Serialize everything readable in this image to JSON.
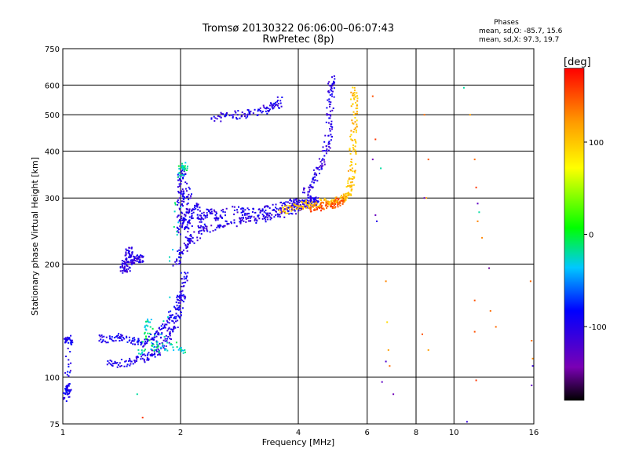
{
  "chart_data": {
    "type": "scatter",
    "title": "Tromsø 20130322 06:06:00–06:07:43",
    "subtitle": "RwPretec (8p)",
    "xlabel": "Frequency [MHz]",
    "ylabel": "Stationary phase Virtual Height [km]",
    "x_scale": "log",
    "y_scale": "log",
    "xlim": [
      1,
      16
    ],
    "ylim": [
      75,
      750
    ],
    "x_ticks": [
      1,
      2,
      4,
      6,
      8,
      10,
      16
    ],
    "y_ticks": [
      75,
      100,
      200,
      300,
      400,
      500,
      600,
      750
    ],
    "grid": true,
    "stats": {
      "title": "Phases",
      "o_line": "mean, sd,O: -85.7, 15.6",
      "x_line": "mean, sd,X:  97.3, 19.7"
    },
    "colorbar": {
      "label": "[deg]",
      "min": -180,
      "max": 180,
      "ticks": [
        100,
        0,
        -100
      ]
    },
    "series": [
      {
        "traces": [
          {
            "points": [
              [
                1.02,
                124
              ],
              [
                1.03,
                126
              ],
              [
                1.05,
                125
              ],
              [
                1.02,
                93
              ],
              [
                1.04,
                92
              ],
              [
                1.01,
                88
              ],
              [
                1.03,
                95
              ]
            ],
            "phase": -95
          },
          {
            "points": [
              [
                1.25,
                126
              ],
              [
                1.32,
                127
              ],
              [
                1.4,
                128
              ],
              [
                1.48,
                125
              ],
              [
                1.56,
                124
              ],
              [
                1.62,
                123
              ],
              [
                1.7,
                126
              ],
              [
                1.75,
                130
              ],
              [
                1.82,
                137
              ],
              [
                1.9,
                146
              ],
              [
                1.96,
                155
              ],
              [
                2.0,
                165
              ]
            ],
            "phase": -95
          },
          {
            "points": [
              [
                1.3,
                108
              ],
              [
                1.4,
                109
              ],
              [
                1.5,
                110
              ],
              [
                1.6,
                112
              ],
              [
                1.68,
                114
              ],
              [
                1.74,
                117
              ],
              [
                1.8,
                121
              ],
              [
                1.86,
                128
              ],
              [
                1.92,
                135
              ],
              [
                1.98,
                145
              ],
              [
                2.02,
                160
              ],
              [
                2.04,
                175
              ],
              [
                2.05,
                190
              ]
            ],
            "phase": -100
          },
          {
            "points": [
              [
                1.42,
                198
              ],
              [
                1.46,
                202
              ],
              [
                1.5,
                205
              ],
              [
                1.55,
                207
              ],
              [
                1.6,
                204
              ],
              [
                1.45,
                215
              ],
              [
                1.5,
                220
              ],
              [
                1.42,
                192
              ],
              [
                1.48,
                196
              ]
            ],
            "phase": -105
          },
          {
            "points": [
              [
                1.95,
                200
              ],
              [
                2.0,
                214
              ],
              [
                2.06,
                225
              ],
              [
                2.15,
                235
              ],
              [
                2.3,
                245
              ],
              [
                2.5,
                252
              ],
              [
                2.7,
                257
              ],
              [
                2.9,
                260
              ],
              [
                3.1,
                263
              ],
              [
                3.3,
                266
              ],
              [
                3.5,
                270
              ],
              [
                3.7,
                274
              ],
              [
                3.9,
                279
              ],
              [
                4.05,
                284
              ],
              [
                4.2,
                288
              ],
              [
                4.35,
                292
              ],
              [
                4.45,
                295
              ]
            ],
            "phase": -105
          },
          {
            "points": [
              [
                2.0,
                240
              ],
              [
                2.0,
                262
              ],
              [
                2.0,
                285
              ],
              [
                2.0,
                310
              ],
              [
                2.0,
                335
              ],
              [
                2.02,
                355
              ],
              [
                2.05,
                300
              ],
              [
                2.05,
                250
              ],
              [
                2.08,
                275
              ],
              [
                2.1,
                230
              ],
              [
                2.1,
                320
              ],
              [
                2.15,
                265
              ],
              [
                2.2,
                290
              ],
              [
                2.25,
                250
              ],
              [
                2.3,
                270
              ],
              [
                2.4,
                280
              ],
              [
                2.5,
                265
              ],
              [
                2.6,
                275
              ]
            ],
            "phase": -102
          },
          {
            "points": [
              [
                2.75,
                278
              ],
              [
                2.9,
                276
              ],
              [
                3.1,
                274
              ],
              [
                3.3,
                278
              ],
              [
                3.5,
                283
              ],
              [
                3.7,
                288
              ],
              [
                3.9,
                292
              ],
              [
                4.1,
                296
              ],
              [
                4.3,
                298
              ],
              [
                4.5,
                300
              ]
            ],
            "phase": -98
          },
          {
            "points": [
              [
                4.15,
                310
              ],
              [
                4.3,
                325
              ],
              [
                4.45,
                345
              ],
              [
                4.6,
                370
              ],
              [
                4.72,
                400
              ],
              [
                4.78,
                440
              ],
              [
                4.82,
                490
              ],
              [
                4.84,
                540
              ],
              [
                4.86,
                590
              ],
              [
                4.88,
                630
              ]
            ],
            "phase": -105
          },
          {
            "points": [
              [
                2.4,
                490
              ],
              [
                2.6,
                495
              ],
              [
                2.8,
                500
              ],
              [
                3.0,
                505
              ],
              [
                3.2,
                512
              ],
              [
                3.35,
                520
              ],
              [
                3.5,
                530
              ],
              [
                3.6,
                545
              ]
            ],
            "phase": -100
          },
          {
            "points": [
              [
                3.6,
                275
              ],
              [
                3.8,
                280
              ],
              [
                4.0,
                285
              ],
              [
                4.2,
                288
              ],
              [
                4.4,
                290
              ],
              [
                4.6,
                292
              ],
              [
                4.8,
                293
              ],
              [
                5.0,
                295
              ],
              [
                5.2,
                297
              ],
              [
                5.3,
                300
              ],
              [
                5.38,
                310
              ],
              [
                5.45,
                330
              ],
              [
                5.5,
                360
              ],
              [
                5.52,
                400
              ],
              [
                5.54,
                450
              ],
              [
                5.55,
                500
              ],
              [
                5.56,
                550
              ],
              [
                5.57,
                590
              ]
            ],
            "phase": 105
          },
          {
            "points": [
              [
                4.3,
                280
              ],
              [
                4.5,
                283
              ],
              [
                4.7,
                286
              ],
              [
                4.9,
                289
              ],
              [
                5.1,
                292
              ],
              [
                5.2,
                295
              ]
            ],
            "phase": 150
          },
          {
            "points": [
              [
                2.05,
                118
              ],
              [
                1.9,
                122
              ],
              [
                1.72,
                118
              ],
              [
                1.65,
                141
              ],
              [
                1.58,
                115
              ],
              [
                1.82,
                128
              ],
              [
                2.0,
                340
              ],
              [
                2.02,
                365
              ],
              [
                2.08,
                360
              ]
            ],
            "phase": -20
          }
        ]
      },
      {
        "points": [
          [
            6.2,
            560,
            150
          ],
          [
            6.3,
            430,
            160
          ],
          [
            6.5,
            360,
            -20
          ],
          [
            6.2,
            380,
            -140
          ],
          [
            6.3,
            270,
            -135
          ],
          [
            6.35,
            260,
            -100
          ],
          [
            6.7,
            180,
            130
          ],
          [
            6.75,
            140,
            90
          ],
          [
            6.8,
            118,
            120
          ],
          [
            6.7,
            110,
            -120
          ],
          [
            6.85,
            107,
            140
          ],
          [
            6.55,
            97,
            -130
          ],
          [
            7.0,
            90,
            -140
          ],
          [
            8.4,
            500,
            140
          ],
          [
            8.6,
            380,
            150
          ],
          [
            8.5,
            300,
            120
          ],
          [
            8.4,
            300,
            -130
          ],
          [
            8.3,
            130,
            150
          ],
          [
            8.6,
            118,
            120
          ],
          [
            10.6,
            590,
            -20
          ],
          [
            11.0,
            500,
            120
          ],
          [
            11.3,
            380,
            140
          ],
          [
            11.4,
            320,
            160
          ],
          [
            11.5,
            290,
            -130
          ],
          [
            11.6,
            275,
            -20
          ],
          [
            11.5,
            260,
            130
          ],
          [
            11.8,
            235,
            130
          ],
          [
            12.3,
            195,
            -150
          ],
          [
            11.3,
            160,
            150
          ],
          [
            12.4,
            150,
            140
          ],
          [
            12.8,
            136,
            140
          ],
          [
            11.4,
            98,
            160
          ],
          [
            15.7,
            180,
            140
          ],
          [
            15.8,
            125,
            140
          ],
          [
            15.9,
            112,
            130
          ],
          [
            15.9,
            107,
            -110
          ],
          [
            15.8,
            95,
            -130
          ],
          [
            10.8,
            76,
            -110
          ],
          [
            11.3,
            132,
            150
          ],
          [
            1.6,
            78,
            160
          ],
          [
            1.55,
            90,
            -20
          ]
        ]
      }
    ]
  }
}
